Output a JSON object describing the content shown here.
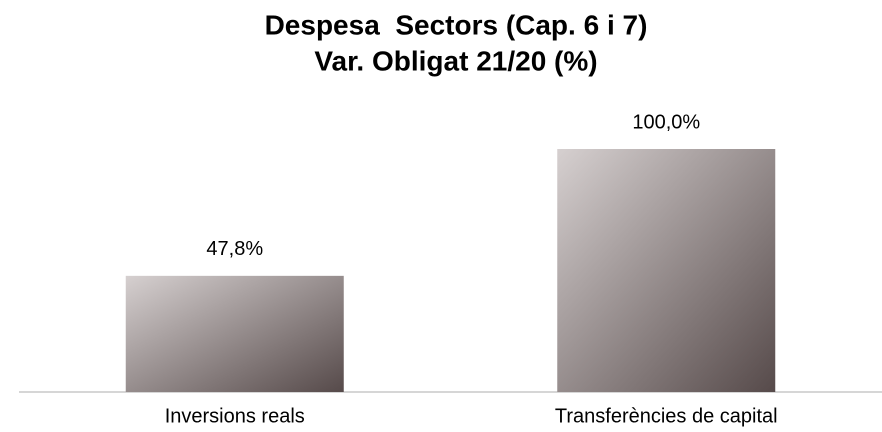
{
  "chart_data": {
    "type": "bar",
    "title": "Despesa  Sectors (Cap. 6 i 7)",
    "subtitle": "Var. Obligat 21/20 (%)",
    "categories": [
      "Inversions reals",
      "Transferències de capital"
    ],
    "values": [
      47.8,
      100.0
    ],
    "value_labels": [
      "47,8%",
      "100,0%"
    ],
    "color": "#564a4a"
  }
}
